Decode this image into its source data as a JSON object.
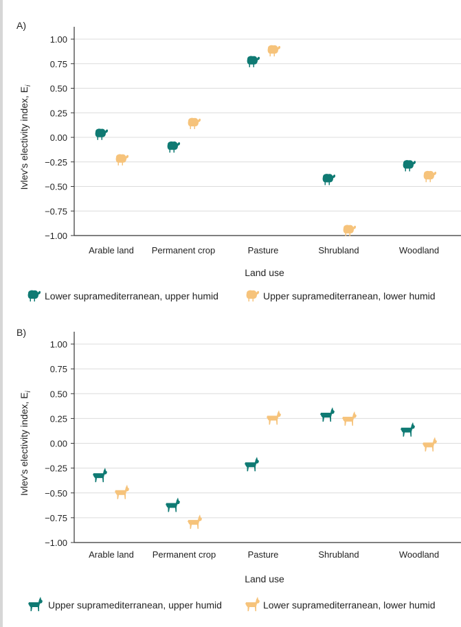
{
  "colors": {
    "teal": "#0f7a73",
    "peach": "#f6c37b",
    "grid": "#dcdcdc",
    "axis": "#333333"
  },
  "chart_data": [
    {
      "type": "scatter",
      "panel_label": "A)",
      "ylabel": "Ivlev's electivity index, E",
      "ylabel_sub": "i",
      "xlabel": "Land use",
      "ylim": [
        -1.0,
        1.0
      ],
      "yticks": [
        "1.00",
        "0.75",
        "0.50",
        "0.25",
        "0.00",
        "−0.25",
        "−0.50",
        "−0.75",
        "−1.00"
      ],
      "ytick_values": [
        1.0,
        0.75,
        0.5,
        0.25,
        0.0,
        -0.25,
        -0.5,
        -0.75,
        -1.0
      ],
      "categories": [
        "Arable land",
        "Permanent crop",
        "Pasture",
        "Shrubland",
        "Woodland"
      ],
      "grid": true,
      "marker": "sheep",
      "series": [
        {
          "name": "Lower supramediterranean, upper humid",
          "color": "#0f7a73",
          "values": [
            0.03,
            -0.1,
            0.77,
            -0.43,
            -0.29
          ]
        },
        {
          "name": "Upper supramediterranean, lower humid",
          "color": "#f6c37b",
          "values": [
            -0.23,
            0.14,
            0.88,
            -0.95,
            -0.4
          ]
        }
      ]
    },
    {
      "type": "scatter",
      "panel_label": "B)",
      "ylabel": "Ivlev's electivity index, E",
      "ylabel_sub": "i",
      "xlabel": "Land use",
      "ylim": [
        -1.0,
        1.0
      ],
      "yticks": [
        "1.00",
        "0.75",
        "0.50",
        "0.25",
        "0.00",
        "−0.25",
        "−0.50",
        "−0.75",
        "−1.00"
      ],
      "ytick_values": [
        1.0,
        0.75,
        0.5,
        0.25,
        0.0,
        -0.25,
        -0.5,
        -0.75,
        -1.0
      ],
      "categories": [
        "Arable land",
        "Permanent crop",
        "Pasture",
        "Shrubland",
        "Woodland"
      ],
      "grid": true,
      "marker": "goat",
      "series": [
        {
          "name": "Upper supramediterranean, upper humid",
          "color": "#0f7a73",
          "values": [
            -0.33,
            -0.63,
            -0.22,
            0.28,
            0.13
          ]
        },
        {
          "name": "Lower supramediterranean, lower humid",
          "color": "#f6c37b",
          "values": [
            -0.5,
            -0.8,
            0.25,
            0.24,
            -0.02
          ]
        }
      ]
    }
  ]
}
